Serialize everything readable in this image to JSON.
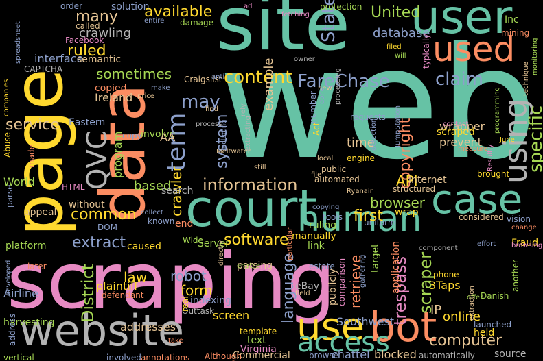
{
  "colors": {
    "background": "#000000",
    "teal": "#66c2a5",
    "salmon": "#fc8d62",
    "blue": "#8da0cb",
    "pink": "#e78ac3",
    "green": "#a6d854",
    "yellow": "#ffd92f",
    "tan": "#e5c494",
    "gray": "#b3b3b3"
  },
  "words": {
    "web": "web",
    "scraping": "scraping",
    "site": "site",
    "page": "page",
    "data": "data",
    "court": "court",
    "website": "website",
    "user": "user",
    "used": "used",
    "using": "using",
    "case": "case",
    "human": "human",
    "bot": "bot",
    "use": "use",
    "access": "access",
    "content": "content",
    "information": "information",
    "qvc": "QVC",
    "term": "term",
    "available": "available",
    "many": "many",
    "ruled": "ruled",
    "sometimes": "sometimes",
    "database": "database",
    "united": "United",
    "state": "State",
    "farechase": "FareChase",
    "claim": "claim",
    "may": "may",
    "specific": "specific",
    "copyright": "copyright",
    "api": "API",
    "browser": "browser",
    "first": "first",
    "software": "software",
    "extract": "extract",
    "common": "common",
    "service": "service",
    "crawling": "crawling",
    "solution": "solution",
    "example": "example",
    "law": "law",
    "robot": "robot",
    "form": "form",
    "district": "District",
    "language": "language",
    "retrieve": "retrieve",
    "trespass": "trespass",
    "scraper": "scraper",
    "computer": "computer",
    "screen": "screen",
    "addresses": "addresses",
    "online": "online",
    "ip": "IP",
    "threetaps": "3Taps",
    "system": "system",
    "crawler": "crawler",
    "program": "program",
    "based": "based",
    "time": "time",
    "world": "World",
    "plaintiff": "plaintiff",
    "airline": "Airline",
    "wrapper": "wrapper",
    "prevent": "prevent",
    "scraped": "scraped",
    "requests": "requests",
    "phone": "phone",
    "brought": "brought",
    "automated": "automated",
    "internet": "Internet",
    "structured": "structured",
    "ryanair": "Ryanair",
    "tools": "tools",
    "ruling": "ruling",
    "wrap": "wrap",
    "uniform": "uniform",
    "considered": "considered",
    "vision": "vision",
    "fraud": "Fraud",
    "change": "change",
    "effort": "effort",
    "browsing": "browsing",
    "manually": "manually",
    "link": "link",
    "target": "target",
    "application": "application",
    "publicly": "publicly",
    "comparison": "comparison",
    "gathering": "gathering",
    "ebay": "eBay",
    "field": "field",
    "parsing": "parsing",
    "estate": "estate",
    "enable": "enable",
    "indexing": "indexing",
    "outtask": "Outtask",
    "real": "real",
    "defendant": "defendant",
    "harvesting": "harvesting",
    "southwest": "Southwest",
    "template": "template",
    "text": "text",
    "virginia": "Virginia",
    "commercial": "Commercial",
    "browse": "browse",
    "chattel": "chattel",
    "blocked": "blocked",
    "automatically": "automatically",
    "source": "source",
    "launched": "launched",
    "held": "held",
    "danish": "Danish",
    "another": "another",
    "component": "component",
    "extraction": "extraction",
    "offer": "offer",
    "although": "Although",
    "involved": "involved",
    "annotations": "annotations",
    "vertical": "vertical",
    "address": "address",
    "take": "take",
    "later": "later",
    "developed": "developed",
    "platform": "platform",
    "caused": "caused",
    "wide": "Wide",
    "server": "Server",
    "end": "end",
    "dom": "DOM",
    "known": "known",
    "collect": "collect",
    "without": "without",
    "appeal": "appeal",
    "parse": "parse",
    "html": "HTML",
    "search": "search",
    "involve": "involve",
    "aa": "AA",
    "copy": "copy",
    "eastern": "Eastern",
    "abuse": "Abuse",
    "made": "made",
    "interface": "interface",
    "semantic": "semantic",
    "captcha": "CAPTCHA",
    "copied": "copied",
    "ireland": "Ireland",
    "price": "price",
    "make": "make",
    "facebook": "Facebook",
    "called": "called",
    "entire": "entire",
    "damage": "damage",
    "order": "order",
    "companies": "companies",
    "spreadsheet": "spreadsheet",
    "ad": "ad",
    "fetching": "fetching",
    "protection": "protection",
    "inc": "Inc",
    "mining": "mining",
    "typically": "typically",
    "filed": "filed",
    "will": "will",
    "owner": "owner",
    "processing": "processing",
    "craigslist": "Craigslist",
    "anti": "anti",
    "new": "new",
    "done": "done",
    "number": "number",
    "find": "find",
    "rely": "rely",
    "process": "process",
    "act": "Act",
    "detection": "detection",
    "engine": "engine",
    "local": "local",
    "public": "public",
    "still": "still",
    "file": "file",
    "meltwater": "Meltwater",
    "extracting": "extracting",
    "including": "including",
    "contact": "contact",
    "measure": "measure",
    "june": "June",
    "results": "Resultly",
    "programming": "programming",
    "technique": "technique",
    "monitoring": "monitoring",
    "jumpstation": "JumpStation",
    "directly": "directly",
    "particular": "particular",
    "copying": "copying"
  }
}
